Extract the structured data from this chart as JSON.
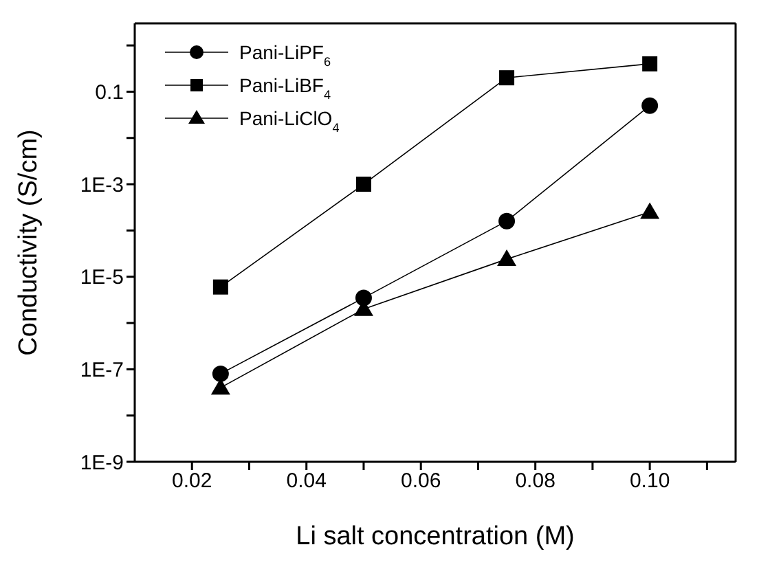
{
  "chart_data": {
    "type": "line",
    "xlabel": "Li salt concentration (M)",
    "ylabel": "Conductivity (S/cm)",
    "log": "y",
    "xlim": [
      0.01,
      0.115
    ],
    "xticks": [
      {
        "value": 0.02,
        "label": "0.02"
      },
      {
        "value": 0.03,
        "label": null
      },
      {
        "value": 0.04,
        "label": "0.04"
      },
      {
        "value": 0.05,
        "label": null
      },
      {
        "value": 0.06,
        "label": "0.06"
      },
      {
        "value": 0.07,
        "label": null
      },
      {
        "value": 0.08,
        "label": "0.08"
      },
      {
        "value": 0.09,
        "label": null
      },
      {
        "value": 0.1,
        "label": "0.10"
      },
      {
        "value": 0.11,
        "label": null
      }
    ],
    "ylim": [
      1e-09,
      3
    ],
    "yticks": [
      {
        "value": 1e-09,
        "label": "1E-9"
      },
      {
        "value": 1e-08,
        "label": null
      },
      {
        "value": 1e-07,
        "label": "1E-7"
      },
      {
        "value": 1e-06,
        "label": null
      },
      {
        "value": 1e-05,
        "label": "1E-5"
      },
      {
        "value": 0.0001,
        "label": null
      },
      {
        "value": 0.001,
        "label": "1E-3"
      },
      {
        "value": 0.01,
        "label": null
      },
      {
        "value": 0.1,
        "label": "0.1"
      },
      {
        "value": 1,
        "label": null
      }
    ],
    "x": [
      0.025,
      0.05,
      0.075,
      0.1
    ],
    "legend": "top left",
    "line_style": "solid",
    "series": [
      {
        "name": "Pani-LiPF$_{6}$",
        "color": "#000000",
        "marker": "circle",
        "values": [
          8e-08,
          3.5e-06,
          0.00016,
          0.05
        ]
      },
      {
        "name": "Pani-LiBF$_{4}$",
        "color": "#000000",
        "marker": "square",
        "values": [
          6e-06,
          0.001,
          0.2,
          0.4
        ]
      },
      {
        "name": "Pani-LiClO$_{4}$",
        "color": "#000000",
        "marker": "triangle",
        "values": [
          4e-08,
          2e-06,
          2.4e-05,
          0.00025
        ]
      }
    ]
  }
}
